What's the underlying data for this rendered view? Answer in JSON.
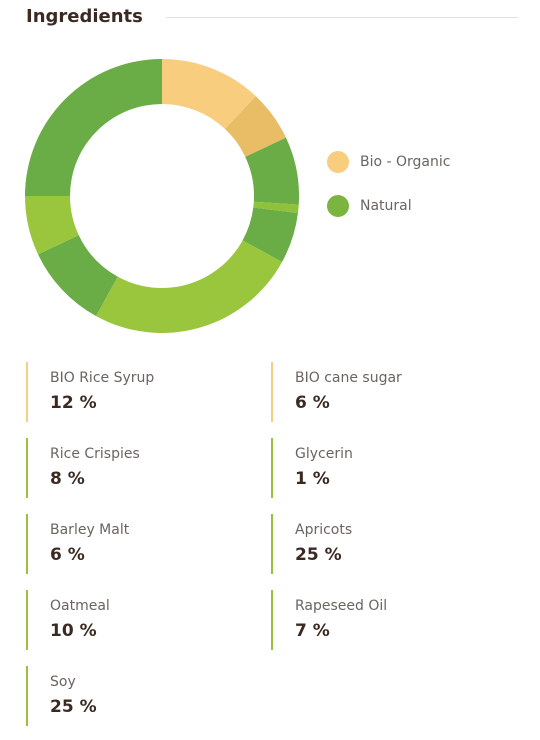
{
  "header": {
    "title": "Ingredients"
  },
  "legend": [
    {
      "label": "Bio - Organic",
      "color": "#f8cd7e"
    },
    {
      "label": "Natural",
      "color": "#7bb43e"
    }
  ],
  "chart_data": {
    "type": "pie",
    "donut": true,
    "slices": [
      {
        "label": "BIO Rice Syrup",
        "value": 12,
        "color": "#f8cd7e",
        "group": "Bio - Organic"
      },
      {
        "label": "BIO cane sugar",
        "value": 6,
        "color": "#e9bd66",
        "group": "Bio - Organic"
      },
      {
        "label": "Rice Crispies",
        "value": 8,
        "color": "#6aac45",
        "group": "Natural"
      },
      {
        "label": "Glycerin",
        "value": 1,
        "color": "#90c13c",
        "group": "Natural"
      },
      {
        "label": "Barley Malt",
        "value": 6,
        "color": "#6aac45",
        "group": "Natural"
      },
      {
        "label": "Apricots",
        "value": 25,
        "color": "#99c63d",
        "group": "Natural"
      },
      {
        "label": "Oatmeal",
        "value": 10,
        "color": "#6aac45",
        "group": "Natural"
      },
      {
        "label": "Rapeseed Oil",
        "value": 7,
        "color": "#99c63d",
        "group": "Natural"
      },
      {
        "label": "Soy",
        "value": 25,
        "color": "#6aac45",
        "group": "Natural"
      }
    ]
  },
  "ingredients": [
    {
      "name": "BIO Rice Syrup",
      "value": "12 %",
      "type": "bio"
    },
    {
      "name": "BIO cane sugar",
      "value": "6 %",
      "type": "bio"
    },
    {
      "name": "Rice Crispies",
      "value": "8 %",
      "type": "natural"
    },
    {
      "name": "Glycerin",
      "value": "1 %",
      "type": "natural"
    },
    {
      "name": "Barley Malt",
      "value": "6 %",
      "type": "natural"
    },
    {
      "name": "Apricots",
      "value": "25 %",
      "type": "natural"
    },
    {
      "name": "Oatmeal",
      "value": "10 %",
      "type": "natural"
    },
    {
      "name": "Rapeseed Oil",
      "value": "7 %",
      "type": "natural"
    },
    {
      "name": "Soy",
      "value": "25 %",
      "type": "natural"
    }
  ]
}
